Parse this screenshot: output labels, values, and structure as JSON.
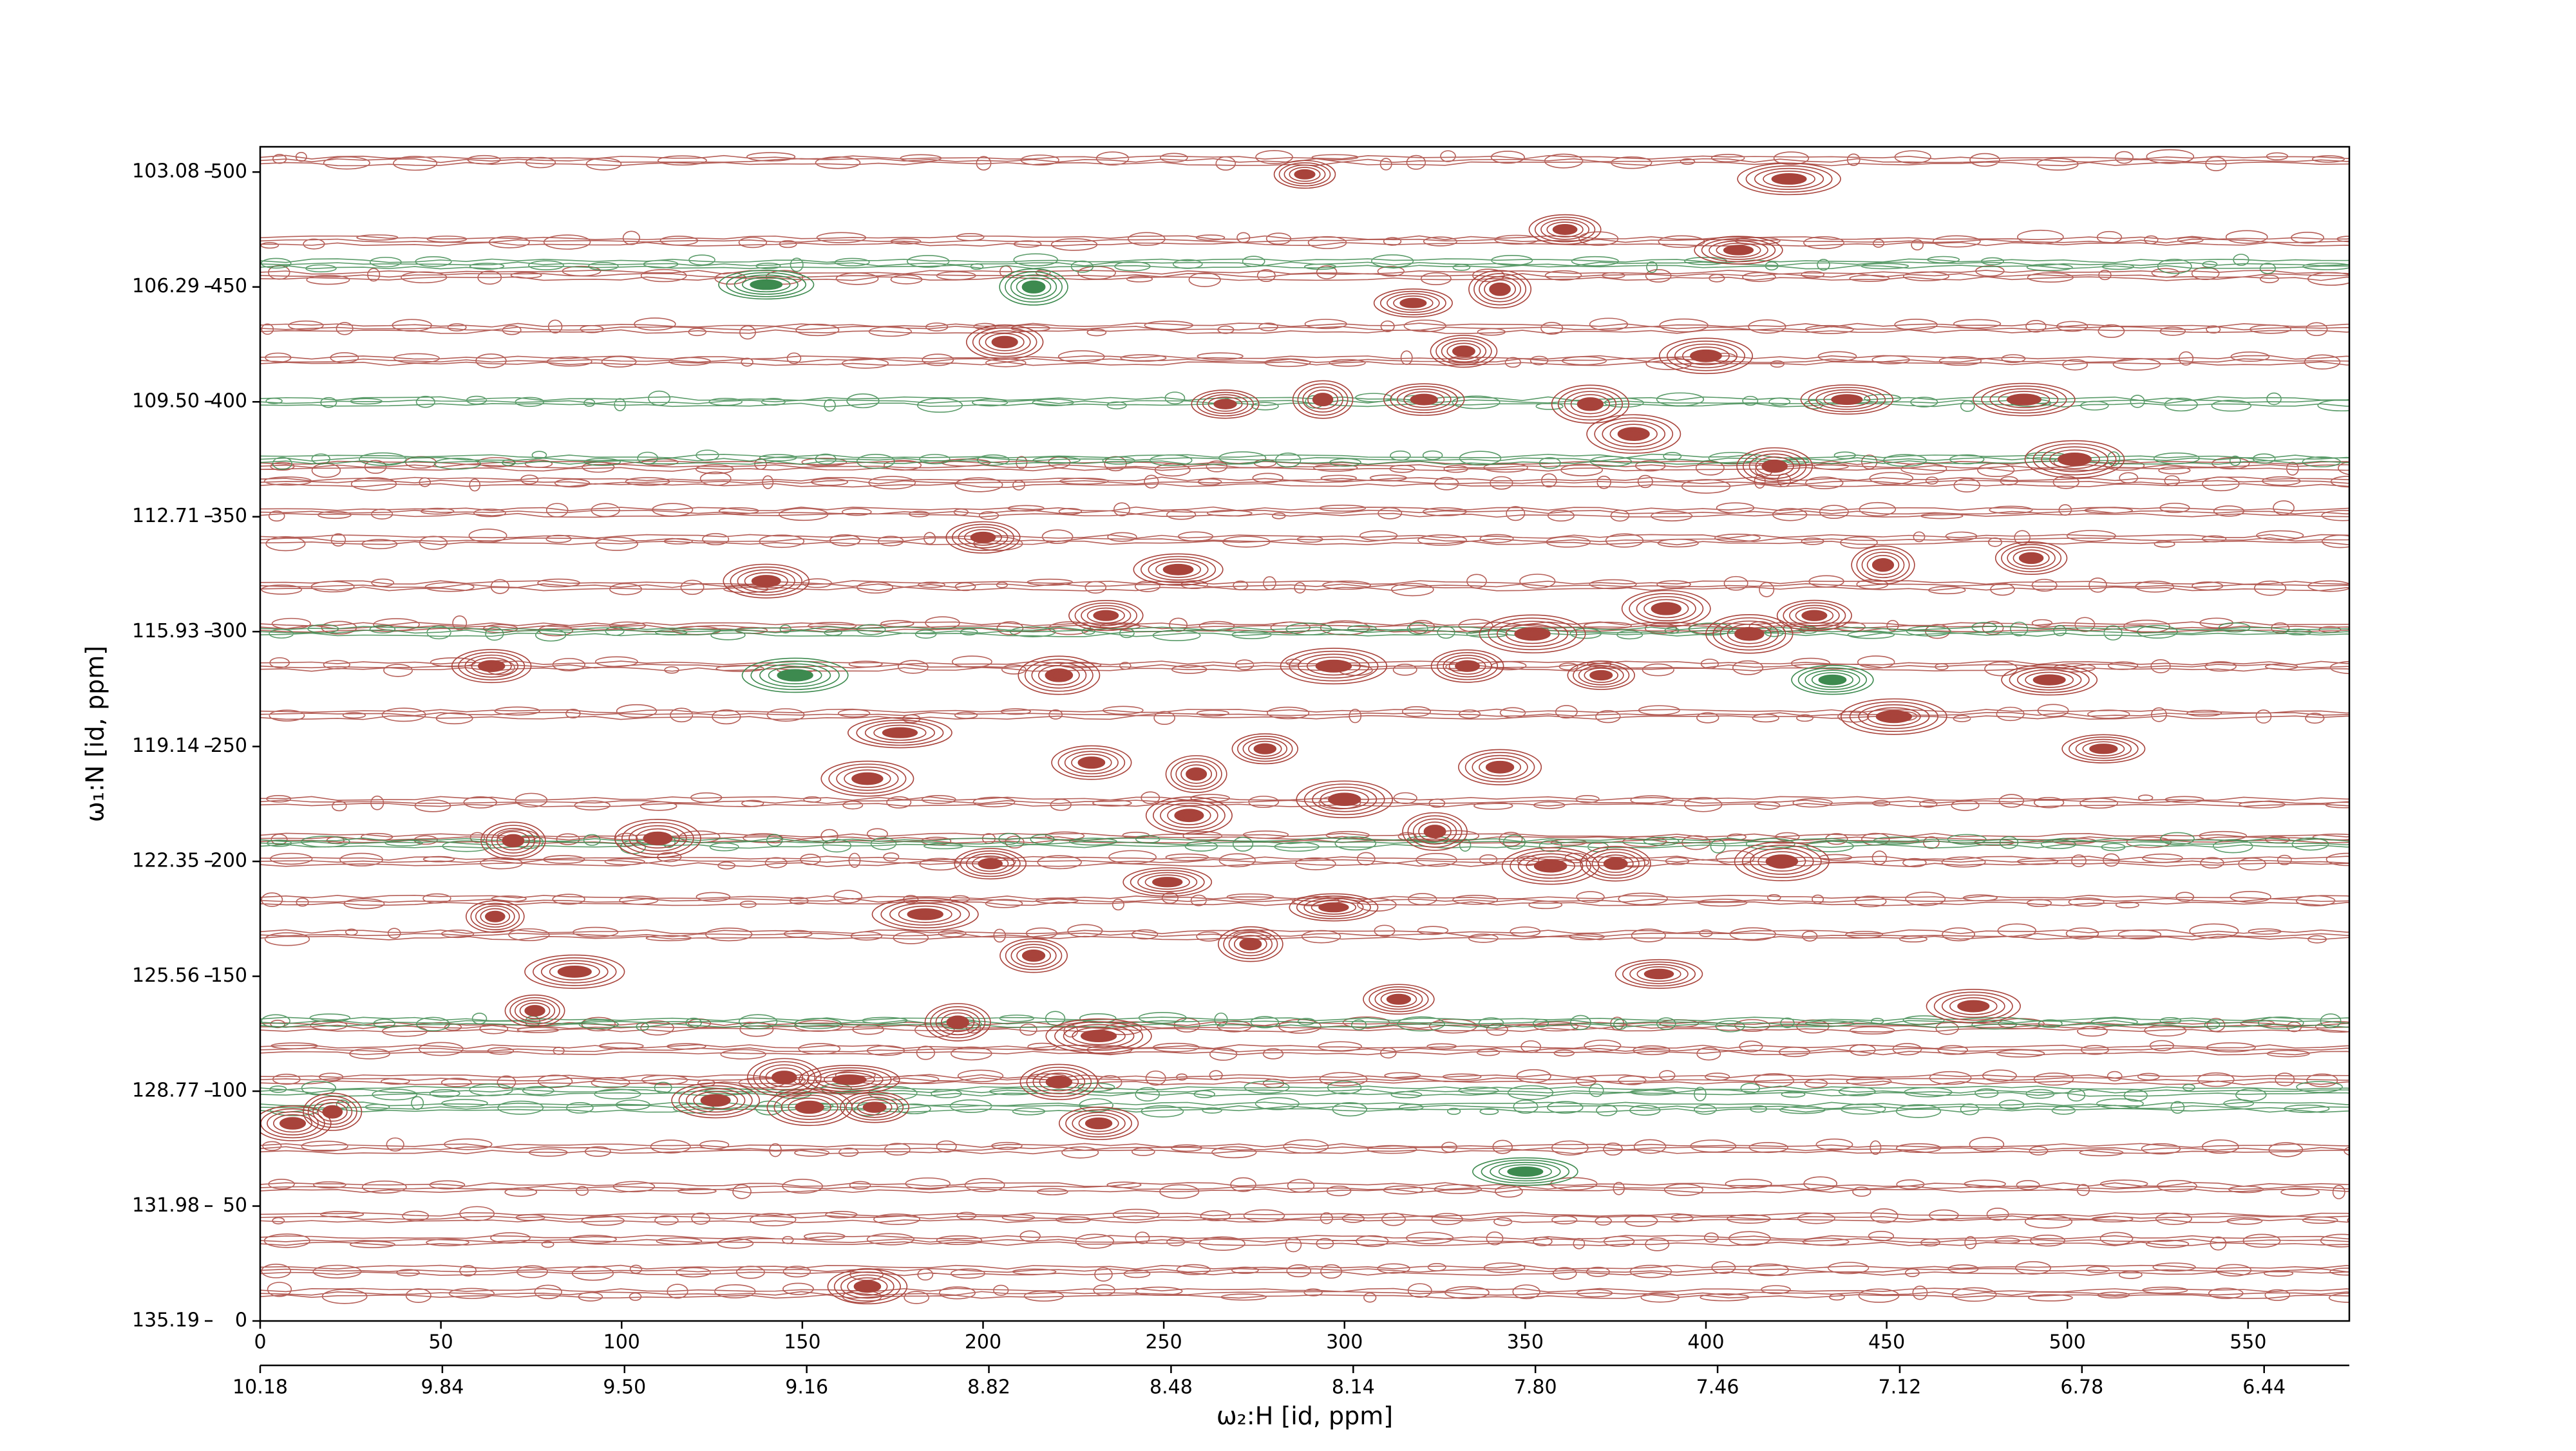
{
  "chart_data": {
    "type": "contour",
    "xlabel": "ω₂:H [id, ppm]",
    "ylabel": "ω₁:N [id, ppm]",
    "xlim": [
      0,
      578
    ],
    "xticks": [
      0,
      50,
      100,
      150,
      200,
      250,
      300,
      350,
      400,
      450,
      500,
      550
    ],
    "ylim": [
      0,
      511
    ],
    "yticks": [
      0,
      50,
      100,
      150,
      200,
      250,
      300,
      350,
      400,
      450,
      500
    ],
    "x2lim": [
      10.18,
      6.281
    ],
    "x2ticks": [
      10.18,
      9.84,
      {
        "value": 9.5,
        "label": "9.50"
      },
      9.16,
      8.82,
      8.48,
      8.14,
      {
        "value": 7.8,
        "label": "7.80"
      },
      7.46,
      7.12,
      6.78,
      6.44
    ],
    "y2lim": [
      135.19,
      102.38
    ],
    "y2ticks": [
      103.08,
      106.29,
      {
        "value": 109.5,
        "label": "109.50"
      },
      112.71,
      115.93,
      119.14,
      122.35,
      125.56,
      128.77,
      131.98,
      135.19
    ],
    "bands": [
      {
        "color": "#a8433b",
        "y": [
          505,
          470,
          455,
          432,
          418,
          372,
          365,
          352,
          340,
          320,
          302,
          285,
          264,
          226,
          210,
          200,
          183,
          168,
          128,
          118,
          105,
          75,
          58,
          45,
          35,
          22,
          12
        ]
      },
      {
        "color": "#3d8a4f",
        "y": [
          460,
          400,
          375,
          300,
          208,
          130,
          100,
          93
        ]
      }
    ],
    "peaks": [
      {
        "color": "#a8433b",
        "x": [
          289,
          423,
          361,
          409,
          319,
          343,
          333,
          206,
          400,
          267,
          294,
          322,
          368,
          439,
          488,
          380,
          419,
          502,
          200,
          140,
          254,
          449,
          490,
          64,
          221,
          234,
          371,
          452,
          495,
          510,
          177,
          168,
          230,
          259,
          70,
          110,
          202,
          421,
          184,
          65,
          214,
          87,
          76,
          193,
          232,
          474,
          387,
          315,
          221,
          126,
          145,
          163,
          152,
          170,
          20,
          9,
          232,
          168,
          297,
          278,
          300,
          343,
          325,
          357,
          375,
          297,
          274,
          334,
          352,
          389,
          412,
          430,
          251,
          257
        ],
        "y": [
          499,
          497,
          475,
          466,
          443,
          449,
          422,
          426,
          420,
          399,
          401,
          401,
          399,
          401,
          401,
          386,
          372,
          375,
          341,
          322,
          327,
          329,
          332,
          285,
          281,
          307,
          281,
          263,
          279,
          249,
          256,
          236,
          243,
          238,
          209,
          210,
          199,
          200,
          177,
          176,
          159,
          152,
          135,
          130,
          124,
          137,
          151,
          140,
          104,
          96,
          106,
          105,
          93,
          93,
          91,
          86,
          86,
          15,
          285,
          249,
          227,
          241,
          213,
          198,
          199,
          180,
          164,
          285,
          299,
          310,
          299,
          307,
          191,
          220
        ]
      },
      {
        "color": "#3d8a4f",
        "x": [
          148,
          435,
          350,
          214,
          140
        ],
        "y": [
          281,
          279,
          65,
          450,
          451
        ]
      }
    ]
  }
}
